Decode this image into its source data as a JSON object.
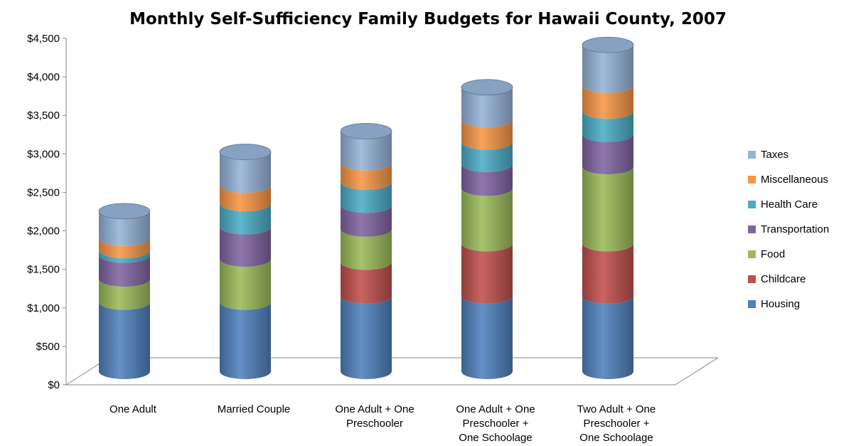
{
  "chart_data": {
    "type": "bar",
    "stacked": true,
    "style": "3d-cylinder",
    "title": "Monthly Self-Sufficiency Family Budgets for Hawaii County, 2007",
    "xlabel": "",
    "ylabel": "",
    "ylim": [
      0,
      4500
    ],
    "ytick_step": 500,
    "ytick_labels": [
      "$0",
      "$500",
      "$1,000",
      "$1,500",
      "$2,000",
      "$2,500",
      "$3,000",
      "$3,500",
      "$4,000",
      "$4,500"
    ],
    "grid": false,
    "legend_position": "right",
    "categories": [
      [
        "One Adult"
      ],
      [
        "Married Couple"
      ],
      [
        "One Adult + One",
        "Preschooler"
      ],
      [
        "One Adult + One",
        "Preschooler +",
        "One Schoolage"
      ],
      [
        "Two Adult + One",
        "Preschooler +",
        "One Schoolage"
      ]
    ],
    "series": [
      {
        "name": "Housing",
        "color": "#4f81bd",
        "values": [
          900,
          900,
          980,
          980,
          980
        ]
      },
      {
        "name": "Childcare",
        "color": "#c0504d",
        "values": [
          0,
          0,
          440,
          680,
          680
        ]
      },
      {
        "name": "Food",
        "color": "#9bbb59",
        "values": [
          300,
          560,
          430,
          720,
          1000
        ]
      },
      {
        "name": "Transportation",
        "color": "#8064a2",
        "values": [
          310,
          420,
          310,
          310,
          420
        ]
      },
      {
        "name": "Health Care",
        "color": "#4bacc6",
        "values": [
          60,
          300,
          300,
          290,
          300
        ]
      },
      {
        "name": "Miscellaneous",
        "color": "#f79646",
        "values": [
          160,
          240,
          250,
          290,
          340
        ]
      },
      {
        "name": "Taxes",
        "color": "#95b3d7",
        "values": [
          350,
          430,
          410,
          420,
          520
        ]
      }
    ]
  }
}
